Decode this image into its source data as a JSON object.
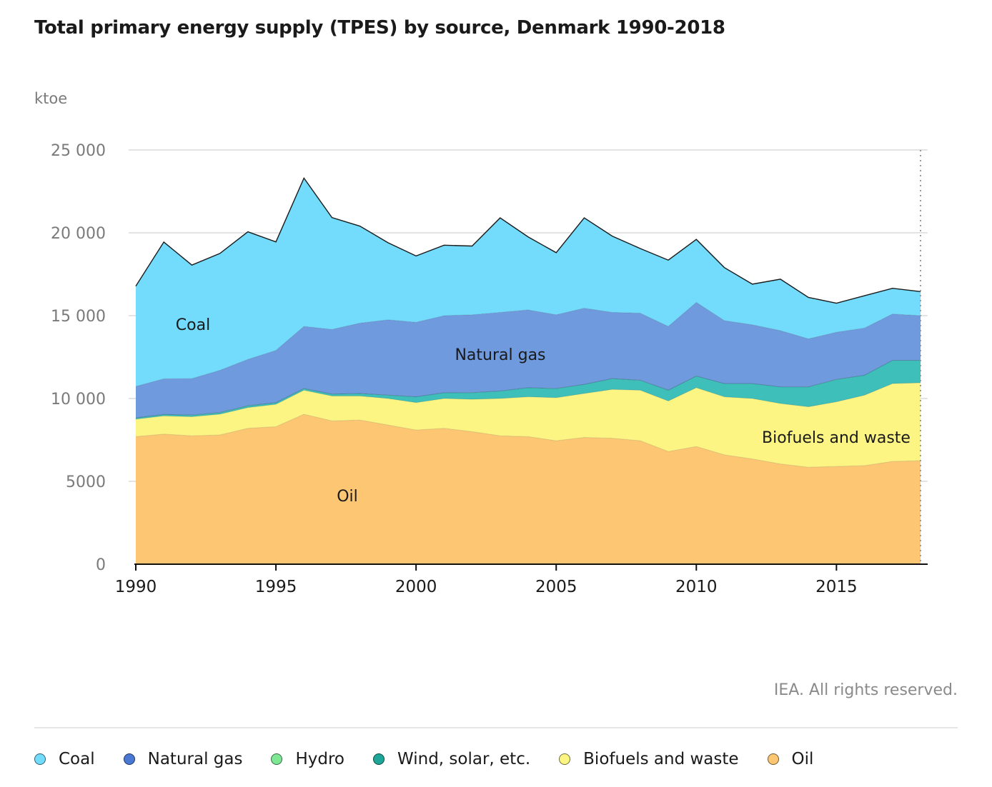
{
  "title": "Total primary energy supply (TPES) by source, Denmark 1990-2018",
  "credit": "IEA. All rights reserved.",
  "chart_data": {
    "type": "area",
    "stacked": true,
    "ylabel": "ktoe",
    "ylim": [
      0,
      25000
    ],
    "yticks": [
      0,
      5000,
      10000,
      15000,
      20000,
      25000
    ],
    "ytick_labels": [
      "0",
      "5000",
      "10 000",
      "15 000",
      "20 000",
      "25 000"
    ],
    "xlim": [
      1990,
      2018
    ],
    "xticks": [
      1990,
      1995,
      2000,
      2005,
      2010,
      2015
    ],
    "x": [
      1990,
      1991,
      1992,
      1993,
      1994,
      1995,
      1996,
      1997,
      1998,
      1999,
      2000,
      2001,
      2002,
      2003,
      2004,
      2005,
      2006,
      2007,
      2008,
      2009,
      2010,
      2011,
      2012,
      2013,
      2014,
      2015,
      2016,
      2017,
      2018
    ],
    "grid": true,
    "series": [
      {
        "name": "Oil",
        "color": "#fdc673",
        "area_label": "Oil",
        "values": [
          7700,
          7850,
          7750,
          7800,
          8200,
          8300,
          9050,
          8650,
          8700,
          8400,
          8100,
          8200,
          8000,
          7750,
          7700,
          7450,
          7650,
          7600,
          7450,
          6800,
          7100,
          6600,
          6350,
          6050,
          5850,
          5900,
          5950,
          6200,
          6250
        ]
      },
      {
        "name": "Biofuels and waste",
        "color": "#fcf584",
        "area_label": "Biofuels and waste",
        "values": [
          1050,
          1100,
          1150,
          1250,
          1250,
          1350,
          1450,
          1500,
          1450,
          1600,
          1650,
          1800,
          1950,
          2250,
          2400,
          2600,
          2650,
          2950,
          3050,
          3050,
          3550,
          3500,
          3650,
          3650,
          3650,
          3900,
          4250,
          4700,
          4700
        ]
      },
      {
        "name": "Wind, solar, etc.",
        "color": "#3ebfba",
        "values": [
          80,
          90,
          100,
          100,
          110,
          100,
          100,
          120,
          150,
          200,
          350,
          350,
          400,
          450,
          550,
          550,
          550,
          650,
          600,
          650,
          700,
          800,
          900,
          1000,
          1200,
          1350,
          1200,
          1400,
          1350
        ]
      },
      {
        "name": "Hydro",
        "color": "#7ee794",
        "values": [
          3,
          3,
          3,
          3,
          3,
          3,
          3,
          2,
          3,
          3,
          3,
          2,
          3,
          2,
          2,
          2,
          2,
          2,
          2,
          2,
          2,
          2,
          2,
          2,
          2,
          2,
          2,
          2,
          2
        ]
      },
      {
        "name": "Natural gas",
        "color": "#6f9ade",
        "area_label": "Natural gas",
        "values": [
          1900,
          2150,
          2200,
          2550,
          2800,
          3150,
          3750,
          3900,
          4250,
          4550,
          4500,
          4650,
          4700,
          4750,
          4700,
          4450,
          4600,
          4000,
          4050,
          3850,
          4450,
          3800,
          3550,
          3400,
          2900,
          2850,
          2850,
          2800,
          2700
        ]
      },
      {
        "name": "Coal",
        "color": "#73dcfc",
        "area_label": "Coal",
        "values": [
          6050,
          8250,
          6850,
          7050,
          7700,
          6550,
          8950,
          6750,
          5850,
          4650,
          4000,
          4250,
          4150,
          5700,
          4400,
          3750,
          5450,
          4600,
          3900,
          4000,
          3800,
          3200,
          2450,
          3100,
          2500,
          1750,
          1950,
          1550,
          1450
        ]
      }
    ]
  },
  "legend": [
    {
      "label": "Coal",
      "color": "#73dcfc"
    },
    {
      "label": "Natural gas",
      "color": "#4a79d4"
    },
    {
      "label": "Hydro",
      "color": "#7ee794"
    },
    {
      "label": "Wind, solar, etc.",
      "color": "#1da697"
    },
    {
      "label": "Biofuels and waste",
      "color": "#fcf584"
    },
    {
      "label": "Oil",
      "color": "#fdc673"
    }
  ]
}
